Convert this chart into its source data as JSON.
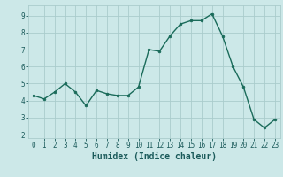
{
  "x": [
    0,
    1,
    2,
    3,
    4,
    5,
    6,
    7,
    8,
    9,
    10,
    11,
    12,
    13,
    14,
    15,
    16,
    17,
    18,
    19,
    20,
    21,
    22,
    23
  ],
  "y": [
    4.3,
    4.1,
    4.5,
    5.0,
    4.5,
    3.7,
    4.6,
    4.4,
    4.3,
    4.3,
    4.8,
    7.0,
    6.9,
    7.8,
    8.5,
    8.7,
    8.7,
    9.1,
    7.8,
    6.0,
    4.8,
    2.9,
    2.4,
    2.9
  ],
  "line_color": "#1a6b5a",
  "marker_color": "#1a6b5a",
  "bg_color": "#cce8e8",
  "grid_color": "#aacccc",
  "xlabel": "Humidex (Indice chaleur)",
  "ylim": [
    1.8,
    9.6
  ],
  "xlim": [
    -0.5,
    23.5
  ],
  "yticks": [
    2,
    3,
    4,
    5,
    6,
    7,
    8,
    9
  ],
  "xticks": [
    0,
    1,
    2,
    3,
    4,
    5,
    6,
    7,
    8,
    9,
    10,
    11,
    12,
    13,
    14,
    15,
    16,
    17,
    18,
    19,
    20,
    21,
    22,
    23
  ],
  "font_color": "#1a5a5a",
  "tick_fontsize": 5.5,
  "label_fontsize": 7.0
}
